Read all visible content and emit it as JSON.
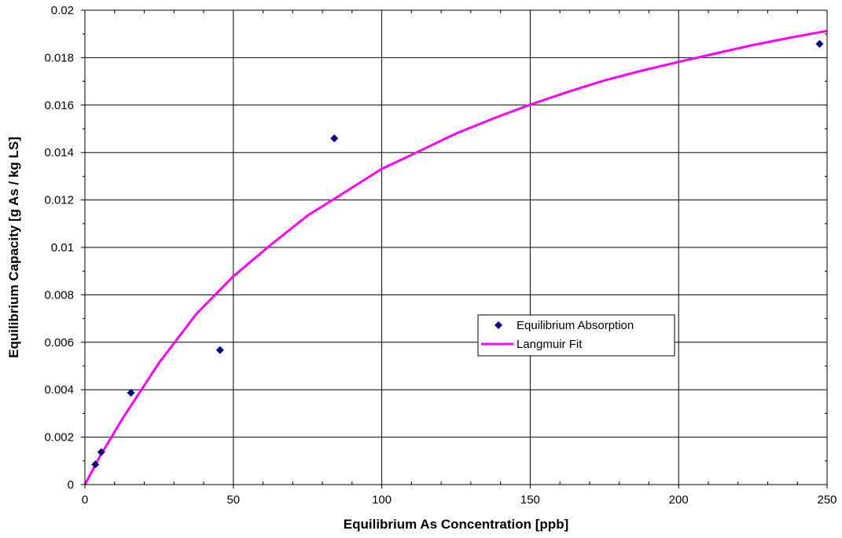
{
  "chart_data": {
    "type": "scatter",
    "title": "",
    "xlabel": "Equilibrium As Concentration [ppb]",
    "ylabel": "Equilibrium Capacity [g As / kg LS]",
    "xlim": [
      0,
      250
    ],
    "ylim": [
      0,
      0.02
    ],
    "x_ticks": [
      "0",
      "50",
      "100",
      "150",
      "200",
      "250"
    ],
    "y_ticks": [
      "0",
      "0.002",
      "0.004",
      "0.006",
      "0.008",
      "0.01",
      "0.012",
      "0.014",
      "0.016",
      "0.018",
      "0.02"
    ],
    "grid": true,
    "legend_position": "center-right",
    "series": [
      {
        "name": "Equilibrium Absorption",
        "kind": "scatter",
        "marker": "diamond",
        "color": "#000080",
        "points": [
          [
            3.5,
            0.00085
          ],
          [
            5.5,
            0.00137
          ],
          [
            15.5,
            0.00387
          ],
          [
            45.5,
            0.00567
          ],
          [
            84,
            0.0146
          ],
          [
            247.5,
            0.01858
          ]
        ]
      },
      {
        "name": "Langmuir Fit",
        "kind": "line",
        "color": "#ff00ff",
        "points": [
          [
            0,
            0
          ],
          [
            5,
            0.00118
          ],
          [
            12.5,
            0.00275
          ],
          [
            25,
            0.00514
          ],
          [
            37.5,
            0.00719
          ],
          [
            50,
            0.00878
          ],
          [
            62.5,
            0.0101
          ],
          [
            75,
            0.01134
          ],
          [
            87.5,
            0.01232
          ],
          [
            100,
            0.01331
          ],
          [
            112.5,
            0.01405
          ],
          [
            125,
            0.0148
          ],
          [
            137.5,
            0.01543
          ],
          [
            150,
            0.01602
          ],
          [
            162.5,
            0.01655
          ],
          [
            175,
            0.01704
          ],
          [
            187.5,
            0.01745
          ],
          [
            200,
            0.01782
          ],
          [
            212.5,
            0.01818
          ],
          [
            225,
            0.01853
          ],
          [
            237.5,
            0.01884
          ],
          [
            250,
            0.01913
          ]
        ]
      }
    ]
  }
}
